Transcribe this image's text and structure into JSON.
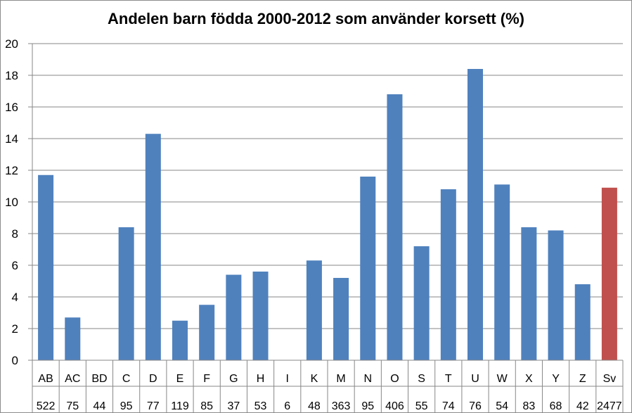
{
  "chart_data": {
    "type": "bar",
    "title": "Andelen barn födda 2000-2012 som använder korsett (%)",
    "xlabel": "",
    "ylabel": "",
    "ylim": [
      0,
      20
    ],
    "yticks": [
      0,
      2,
      4,
      6,
      8,
      10,
      12,
      14,
      16,
      18,
      20
    ],
    "grid": true,
    "categories": [
      "AB",
      "AC",
      "BD",
      "C",
      "D",
      "E",
      "F",
      "G",
      "H",
      "I",
      "K",
      "M",
      "N",
      "O",
      "S",
      "T",
      "U",
      "W",
      "X",
      "Y",
      "Z",
      "Sv"
    ],
    "counts": [
      "522",
      "75",
      "44",
      "95",
      "77",
      "119",
      "85",
      "37",
      "53",
      "6",
      "48",
      "363",
      "95",
      "406",
      "55",
      "74",
      "76",
      "54",
      "83",
      "68",
      "42",
      "2477"
    ],
    "values": [
      11.7,
      2.7,
      0,
      8.4,
      14.3,
      2.5,
      3.5,
      5.4,
      5.6,
      0,
      6.3,
      5.2,
      11.6,
      16.8,
      7.2,
      10.8,
      18.4,
      11.1,
      8.4,
      8.2,
      4.8,
      10.9
    ],
    "colors": {
      "default": "#4f81bd",
      "highlight": "#c0504d",
      "highlight_category": "Sv",
      "grid": "#878787",
      "axis": "#878787"
    }
  }
}
